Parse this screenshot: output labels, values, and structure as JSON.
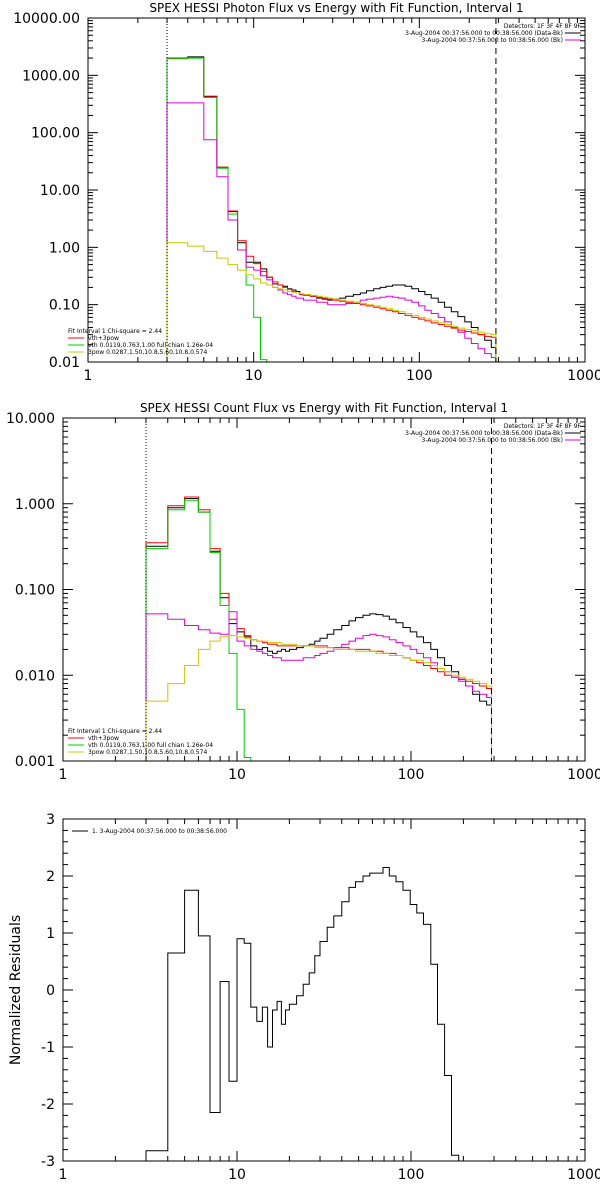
{
  "chart_data": [
    {
      "type": "line",
      "title": "SPEX HESSI Photon Flux vs Energy with Fit Function, Interval 1",
      "xscale": "log",
      "yscale": "log",
      "xlim": [
        1,
        1000
      ],
      "ylim": [
        0.01,
        10000
      ],
      "x_ticks": [
        "1",
        "10",
        "100",
        "1000"
      ],
      "y_ticks": [
        "0.01",
        "0.10",
        "1.00",
        "10.00",
        "100.00",
        "1000.00",
        "10000.00"
      ],
      "vlines": [
        {
          "x": 3,
          "style": "dotted"
        },
        {
          "x": 290,
          "style": "dashed"
        }
      ],
      "legend_top": {
        "header": "Detectors: 1F 3F 4F 8F 9F",
        "entries": [
          {
            "text": "3-Aug-2004 00:37:56.000 to 00:38:56.000 (Data-Bk)",
            "color": "#000000"
          },
          {
            "text": "3-Aug-2004 00:37:56.000 to 00:38:56.000 (Bk)",
            "color": "#dd00dd"
          }
        ]
      },
      "legend_bottom": {
        "header": "Fit Interval 1   Chi-square = 2.44",
        "entries": [
          {
            "text": "vth+3pow",
            "color": "#ff0000"
          },
          {
            "text": "vth 0.0119,0.763,1.00  full chian 1.26e-04",
            "color": "#00cc00"
          },
          {
            "text": "3pow 0.0287,1.50,10.8,5.60,10.8,0.574",
            "color": "#c8c800"
          }
        ]
      },
      "bin_edges": [
        3,
        4,
        5,
        6,
        7,
        8,
        9,
        10,
        11,
        12,
        13,
        14,
        15,
        16,
        17,
        18,
        19,
        20,
        22,
        24,
        26,
        28,
        30,
        33,
        36,
        40,
        44,
        48,
        53,
        58,
        63,
        69,
        75,
        82,
        90,
        99,
        108,
        118,
        130,
        142,
        156,
        171,
        188,
        206,
        226,
        248,
        272,
        290
      ],
      "series": [
        {
          "color": "#000000",
          "values": [
            2000,
            2100,
            430,
            25,
            4.2,
            1.2,
            0.55,
            0.55,
            0.42,
            0.3,
            0.23,
            0.22,
            0.21,
            0.19,
            0.18,
            0.17,
            0.15,
            0.15,
            0.14,
            0.13,
            0.125,
            0.12,
            0.125,
            0.13,
            0.14,
            0.15,
            0.16,
            0.175,
            0.19,
            0.2,
            0.21,
            0.22,
            0.22,
            0.21,
            0.19,
            0.17,
            0.15,
            0.13,
            0.11,
            0.09,
            0.075,
            0.062,
            0.05,
            0.04,
            0.03,
            0.024,
            0.018
          ]
        },
        {
          "color": "#ff0000",
          "values": [
            2000,
            2050,
            420,
            25,
            4.3,
            1.3,
            0.7,
            0.52,
            0.38,
            0.3,
            0.25,
            0.22,
            0.2,
            0.185,
            0.17,
            0.16,
            0.15,
            0.145,
            0.14,
            0.135,
            0.13,
            0.125,
            0.12,
            0.115,
            0.11,
            0.105,
            0.1,
            0.095,
            0.09,
            0.085,
            0.08,
            0.075,
            0.07,
            0.065,
            0.06,
            0.056,
            0.052,
            0.048,
            0.045,
            0.042,
            0.039,
            0.036,
            0.034,
            0.032,
            0.03,
            0.028,
            0.027
          ]
        },
        {
          "color": "#00cc00",
          "values": [
            1950,
            2000,
            410,
            24,
            3.8,
            0.9,
            0.22,
            0.06,
            0.011
          ]
        },
        {
          "color": "#dd00dd",
          "values": [
            330,
            330,
            75,
            17,
            3,
            0.9,
            0.45,
            0.4,
            0.32,
            0.27,
            0.2,
            0.18,
            0.16,
            0.15,
            0.14,
            0.13,
            0.13,
            0.12,
            0.12,
            0.11,
            0.11,
            0.1,
            0.1,
            0.1,
            0.105,
            0.11,
            0.12,
            0.125,
            0.13,
            0.135,
            0.14,
            0.135,
            0.13,
            0.12,
            0.11,
            0.095,
            0.08,
            0.07,
            0.06,
            0.05,
            0.04,
            0.033,
            0.026,
            0.021,
            0.017,
            0.014,
            0.012
          ]
        },
        {
          "color": "#c8c800",
          "values": [
            1.2,
            1.05,
            0.85,
            0.65,
            0.5,
            0.4,
            0.33,
            0.28,
            0.24,
            0.22,
            0.2,
            0.19,
            0.18,
            0.17,
            0.165,
            0.16,
            0.155,
            0.15,
            0.145,
            0.14,
            0.135,
            0.13,
            0.125,
            0.12,
            0.115,
            0.11,
            0.105,
            0.1,
            0.095,
            0.09,
            0.085,
            0.08,
            0.075,
            0.07,
            0.065,
            0.06,
            0.056,
            0.052,
            0.048,
            0.045,
            0.042,
            0.039,
            0.037,
            0.035,
            0.033,
            0.031,
            0.03
          ]
        }
      ]
    },
    {
      "type": "line",
      "title": "SPEX HESSI Count Flux vs Energy with Fit Function, Interval 1",
      "xscale": "log",
      "yscale": "log",
      "xlim": [
        1,
        1000
      ],
      "ylim": [
        0.001,
        10
      ],
      "x_ticks": [
        "1",
        "10",
        "100",
        "1000"
      ],
      "y_ticks": [
        "0.001",
        "0.010",
        "0.100",
        "1.000",
        "10.000"
      ],
      "vlines": [
        {
          "x": 3,
          "style": "dotted"
        },
        {
          "x": 290,
          "style": "dashed"
        }
      ],
      "legend_top": {
        "header": "Detectors: 1F 3F 4F 8F 9F",
        "entries": [
          {
            "text": "3-Aug-2004 00:37:56.000 to 00:38:56.000 (Data-Bk)",
            "color": "#000000"
          },
          {
            "text": "3-Aug-2004 00:37:56.000 to 00:38:56.000 (Bk)",
            "color": "#dd00dd"
          }
        ]
      },
      "legend_bottom": {
        "header": "Fit Interval 1   Chi-square = 2.44",
        "entries": [
          {
            "text": "vth+3pow",
            "color": "#ff0000"
          },
          {
            "text": "vth 0.0119,0.763,1.00  full chian 1.26e-04",
            "color": "#00cc00"
          },
          {
            "text": "3pow 0.0287,1.50,10.8,5.60,10.8,0.574",
            "color": "#c8c800"
          }
        ]
      },
      "bin_edges": [
        3,
        4,
        5,
        6,
        7,
        8,
        9,
        10,
        11,
        12,
        13,
        14,
        15,
        16,
        17,
        18,
        19,
        20,
        22,
        24,
        26,
        28,
        30,
        33,
        36,
        40,
        44,
        48,
        53,
        58,
        63,
        69,
        75,
        82,
        90,
        99,
        108,
        118,
        130,
        142,
        156,
        171,
        188,
        206,
        226,
        248,
        272,
        290
      ],
      "series": [
        {
          "color": "#000000",
          "values": [
            0.32,
            0.9,
            1.15,
            0.8,
            0.28,
            0.08,
            0.04,
            0.032,
            0.028,
            0.022,
            0.02,
            0.021,
            0.019,
            0.018,
            0.019,
            0.02,
            0.019,
            0.02,
            0.021,
            0.022,
            0.023,
            0.025,
            0.027,
            0.03,
            0.034,
            0.038,
            0.043,
            0.047,
            0.05,
            0.052,
            0.051,
            0.049,
            0.045,
            0.041,
            0.036,
            0.032,
            0.028,
            0.024,
            0.02,
            0.016,
            0.013,
            0.011,
            0.009,
            0.0075,
            0.006,
            0.005,
            0.0045
          ]
        },
        {
          "color": "#ff0000",
          "values": [
            0.35,
            0.95,
            1.2,
            0.85,
            0.3,
            0.09,
            0.045,
            0.035,
            0.029,
            0.026,
            0.025,
            0.024,
            0.023,
            0.023,
            0.022,
            0.022,
            0.022,
            0.022,
            0.022,
            0.022,
            0.022,
            0.022,
            0.022,
            0.021,
            0.021,
            0.021,
            0.02,
            0.02,
            0.02,
            0.019,
            0.019,
            0.018,
            0.018,
            0.017,
            0.016,
            0.015,
            0.014,
            0.013,
            0.012,
            0.011,
            0.01,
            0.0095,
            0.009,
            0.0085,
            0.008,
            0.0075,
            0.007
          ]
        },
        {
          "color": "#00cc00",
          "values": [
            0.3,
            0.85,
            1.1,
            0.8,
            0.27,
            0.065,
            0.018,
            0.004,
            0.0011
          ]
        },
        {
          "color": "#dd00dd",
          "values": [
            0.052,
            0.045,
            0.038,
            0.034,
            0.031,
            0.03,
            0.055,
            0.025,
            0.022,
            0.02,
            0.019,
            0.018,
            0.017,
            0.016,
            0.016,
            0.015,
            0.015,
            0.015,
            0.015,
            0.016,
            0.016,
            0.017,
            0.018,
            0.019,
            0.021,
            0.023,
            0.025,
            0.027,
            0.029,
            0.03,
            0.029,
            0.028,
            0.026,
            0.024,
            0.022,
            0.02,
            0.018,
            0.016,
            0.014,
            0.012,
            0.011,
            0.0095,
            0.0085,
            0.0075,
            0.0065,
            0.006,
            0.0055
          ]
        },
        {
          "color": "#c8c800",
          "values": [
            0.005,
            0.008,
            0.013,
            0.02,
            0.025,
            0.028,
            0.029,
            0.028,
            0.027,
            0.026,
            0.025,
            0.025,
            0.024,
            0.024,
            0.024,
            0.023,
            0.023,
            0.023,
            0.022,
            0.022,
            0.022,
            0.021,
            0.021,
            0.021,
            0.02,
            0.02,
            0.02,
            0.019,
            0.019,
            0.019,
            0.018,
            0.018,
            0.017,
            0.017,
            0.016,
            0.015,
            0.015,
            0.014,
            0.013,
            0.012,
            0.011,
            0.01,
            0.0095,
            0.009,
            0.0085,
            0.008,
            0.0075
          ]
        }
      ]
    },
    {
      "type": "line",
      "title": "",
      "ylabel": "Normalized Residuals",
      "xscale": "log",
      "yscale": "linear",
      "xlim": [
        1,
        1000
      ],
      "ylim": [
        -3,
        3
      ],
      "x_ticks": [
        "1",
        "10",
        "100",
        "1000"
      ],
      "y_ticks": [
        "-3",
        "-2",
        "-1",
        "0",
        "1",
        "2",
        "3"
      ],
      "legend_top": {
        "header": "",
        "entries": [
          {
            "text": "1.  3-Aug-2004 00:37:56.000 to 00:38:56.000",
            "color": "#000000"
          }
        ]
      },
      "bin_edges": [
        3,
        4,
        5,
        6,
        7,
        8,
        9,
        10,
        11,
        12,
        13,
        14,
        15,
        16,
        17,
        18,
        19,
        20,
        22,
        24,
        26,
        28,
        30,
        33,
        36,
        40,
        44,
        48,
        53,
        58,
        63,
        69,
        75,
        82,
        90,
        99,
        108,
        118,
        130,
        142,
        156,
        171,
        188,
        206,
        226,
        248,
        272,
        290
      ],
      "series": [
        {
          "color": "#000000",
          "values": [
            -2.82,
            0.65,
            1.75,
            0.95,
            -2.15,
            0.15,
            -1.6,
            0.9,
            0.82,
            -0.3,
            -0.55,
            -0.3,
            -1.0,
            -0.35,
            -0.2,
            -0.6,
            -0.35,
            -0.25,
            -0.1,
            0.1,
            0.3,
            0.6,
            0.85,
            1.1,
            1.3,
            1.55,
            1.8,
            1.9,
            2.0,
            2.05,
            2.05,
            2.15,
            2.0,
            1.9,
            1.75,
            1.5,
            1.35,
            1.15,
            0.45,
            -0.6,
            -1.5,
            -2.9,
            -3.0,
            -3.0,
            -3.0,
            -3.0,
            -3.0
          ]
        }
      ]
    }
  ]
}
